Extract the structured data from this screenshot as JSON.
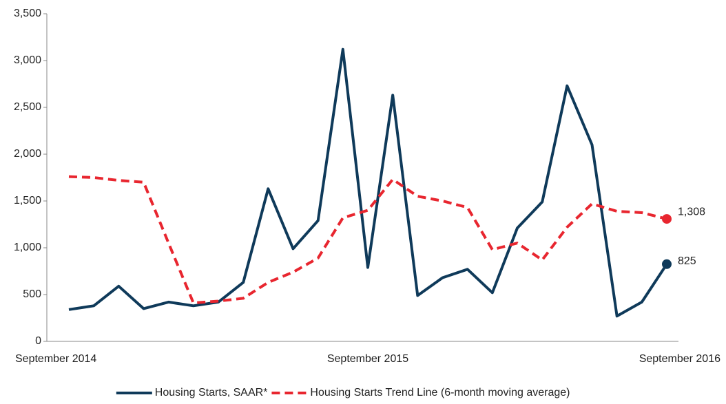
{
  "chart_data": {
    "type": "line",
    "categories": [
      "September 2014",
      null,
      null,
      null,
      null,
      null,
      null,
      null,
      null,
      null,
      null,
      null,
      "September 2015",
      null,
      null,
      null,
      null,
      null,
      null,
      null,
      null,
      null,
      null,
      null,
      "September 2016"
    ],
    "series": [
      {
        "name": "Housing Starts, SAAR*",
        "color": "#0f3a5a",
        "dash": false,
        "values": [
          340,
          380,
          590,
          350,
          420,
          380,
          420,
          630,
          1630,
          990,
          1290,
          3120,
          790,
          2630,
          490,
          680,
          770,
          520,
          1210,
          1490,
          2730,
          2100,
          270,
          420,
          825
        ],
        "value_labels": [
          null,
          null,
          null,
          null,
          null,
          null,
          null,
          null,
          null,
          null,
          null,
          null,
          null,
          null,
          null,
          null,
          null,
          null,
          null,
          null,
          null,
          null,
          null,
          null,
          "825"
        ]
      },
      {
        "name": "Housing Starts Trend Line (6-month moving average)",
        "color": "#e8262f",
        "dash": true,
        "values": [
          1760,
          1750,
          1720,
          1700,
          1050,
          410,
          430,
          460,
          630,
          740,
          890,
          1320,
          1400,
          1730,
          1550,
          1500,
          1430,
          980,
          1050,
          870,
          1220,
          1470,
          1390,
          1375,
          1308
        ],
        "value_labels": [
          null,
          null,
          null,
          null,
          null,
          null,
          null,
          null,
          null,
          null,
          null,
          null,
          null,
          null,
          null,
          null,
          null,
          null,
          null,
          null,
          null,
          null,
          null,
          null,
          "1,308"
        ]
      }
    ],
    "ylim": [
      0,
      3500
    ],
    "yticks": [
      0,
      500,
      {
        "value": 1000,
        "label": "1,000"
      },
      {
        "value": 1500,
        "label": "1,500"
      },
      {
        "value": 2000,
        "label": "2,000"
      },
      {
        "value": 2500,
        "label": "2,500"
      },
      {
        "value": 3000,
        "label": "3,000"
      },
      {
        "value": 3500,
        "label": "3,500"
      }
    ],
    "grid": false,
    "legend": "bottom"
  }
}
